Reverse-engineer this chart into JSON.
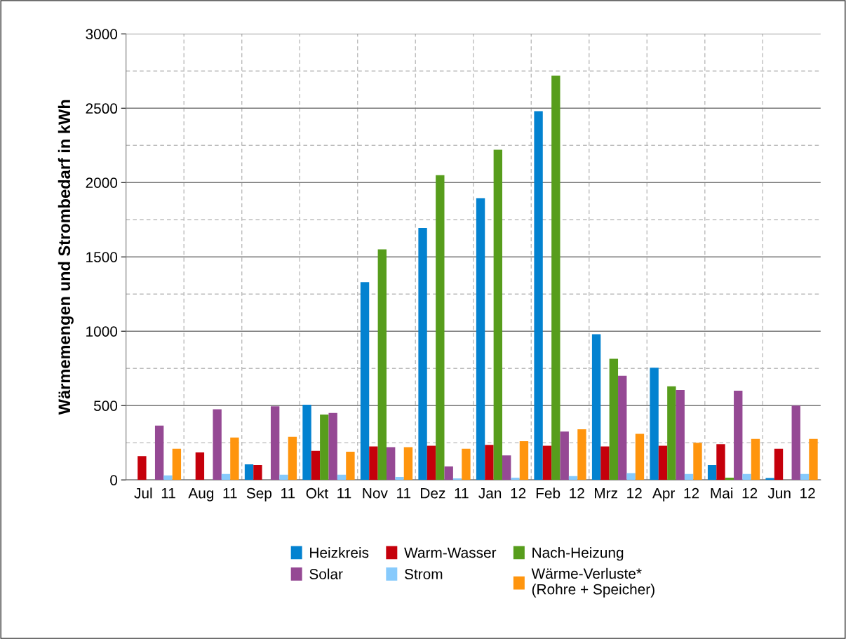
{
  "chart_data": {
    "type": "bar",
    "ylabel": "Wärmemengen und Strombedarf in kWh",
    "categories": [
      "Jul  11",
      "Aug  11",
      "Sep  11",
      "Okt  11",
      "Nov  11",
      "Dez  11",
      "Jan  12",
      "Feb  12",
      "Mrz  12",
      "Apr  12",
      "Mai  12",
      "Jun  12"
    ],
    "series": [
      {
        "name": "Heizkreis",
        "color": "#0382d0",
        "values": [
          0,
          0,
          105,
          505,
          1330,
          1695,
          1895,
          2480,
          980,
          755,
          100,
          12
        ]
      },
      {
        "name": "Warm-Wasser",
        "color": "#c5000b",
        "values": [
          160,
          185,
          100,
          195,
          225,
          230,
          235,
          230,
          225,
          230,
          240,
          210
        ]
      },
      {
        "name": "Nach-Heizung",
        "color": "#579d1c",
        "values": [
          0,
          0,
          null,
          440,
          1550,
          2050,
          2220,
          2720,
          815,
          630,
          15,
          0
        ]
      },
      {
        "name": "Solar",
        "color": "#954994",
        "values": [
          365,
          475,
          495,
          450,
          220,
          90,
          165,
          325,
          700,
          605,
          600,
          500
        ]
      },
      {
        "name": "Strom",
        "color": "#87cafc",
        "values": [
          30,
          40,
          35,
          35,
          20,
          10,
          15,
          25,
          45,
          40,
          40,
          40
        ]
      },
      {
        "name": "Wärme-Verluste*\n(Rohre + Speicher)",
        "color": "#ff950e",
        "values": [
          210,
          285,
          290,
          190,
          220,
          210,
          260,
          340,
          310,
          250,
          275,
          275
        ]
      }
    ],
    "ylim": [
      0,
      3000
    ],
    "yticks": [
      0,
      500,
      1000,
      1500,
      2000,
      2500,
      3000
    ],
    "grid": true,
    "legend": "bottom"
  }
}
